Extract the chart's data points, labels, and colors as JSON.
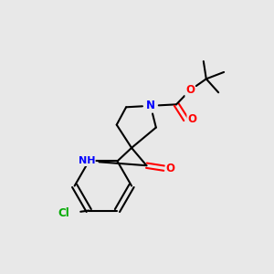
{
  "background_color": "#e8e8e8",
  "atom_colors": {
    "C": "#000000",
    "N": "#0000ff",
    "O": "#ff0000",
    "Cl": "#00aa00",
    "H": "#000000"
  },
  "bond_color": "#000000",
  "figsize": [
    3.0,
    3.0
  ],
  "dpi": 100
}
